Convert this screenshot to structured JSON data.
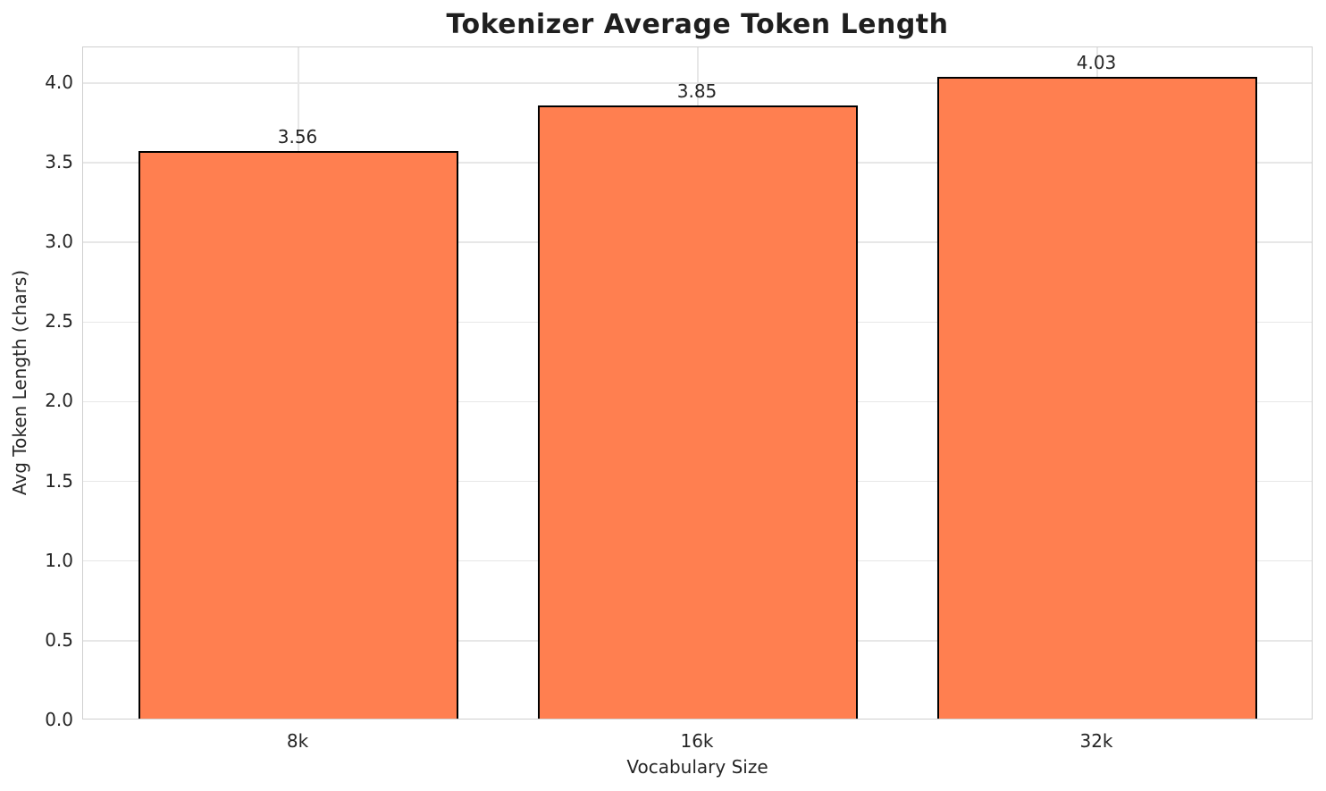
{
  "chart_data": {
    "type": "bar",
    "title": "Tokenizer Average Token Length",
    "xlabel": "Vocabulary Size",
    "ylabel": "Avg Token Length (chars)",
    "categories": [
      "8k",
      "16k",
      "32k"
    ],
    "values": [
      3.56,
      3.85,
      4.03
    ],
    "value_labels": [
      "3.56",
      "3.85",
      "4.03"
    ],
    "yticks": [
      0.0,
      0.5,
      1.0,
      1.5,
      2.0,
      2.5,
      3.0,
      3.5,
      4.0
    ],
    "ylim": [
      0,
      4.2244
    ],
    "grid": true,
    "legend": false,
    "bar_color": "#ff7f50",
    "bar_edge_color": "#000000",
    "grid_color": "#e7e7e7",
    "text_color": "#262626"
  }
}
